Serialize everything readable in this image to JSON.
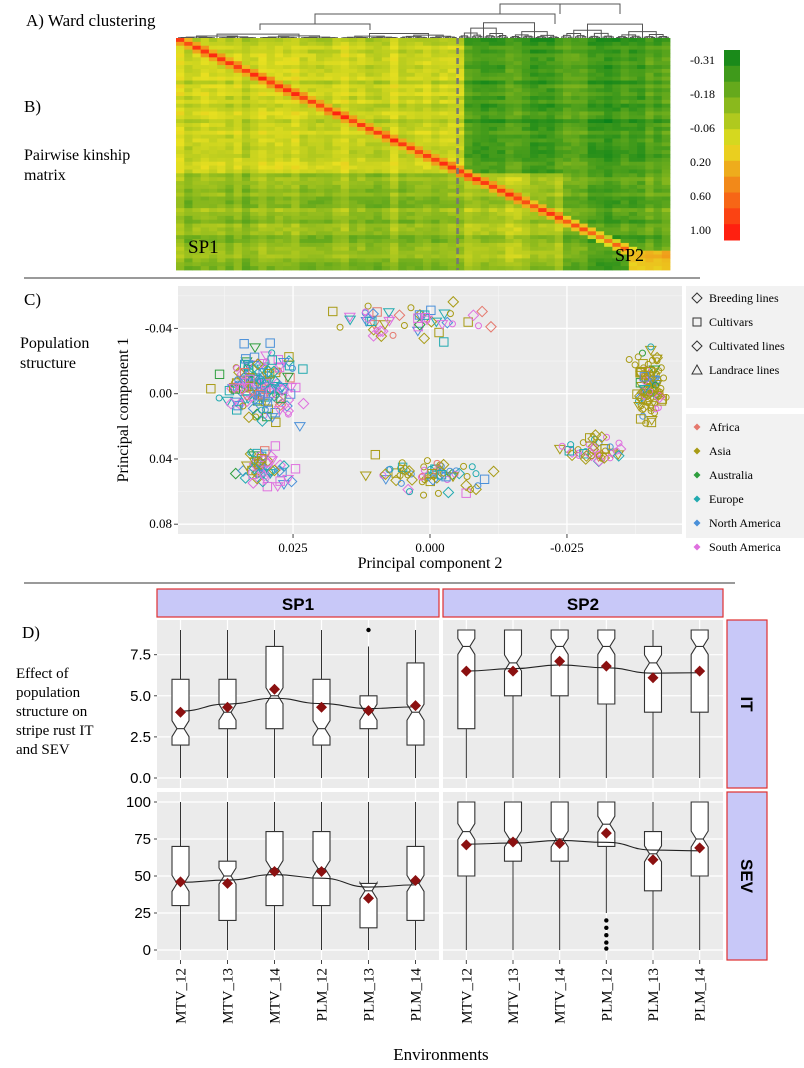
{
  "panel_a": {
    "label": "A) Ward clustering"
  },
  "panel_b": {
    "label": "B)",
    "desc_line1": "Pairwise kinship",
    "desc_line2": "matrix",
    "cluster1": "SP1",
    "cluster2": "SP2",
    "colorbar_ticks": [
      "-0.31",
      "-0.18",
      "-0.06",
      "0.20",
      "0.60",
      "1.00"
    ],
    "colors": {
      "low": "#1a8a1a",
      "mid": "#e8e020",
      "high": "#ff2010"
    }
  },
  "panel_c": {
    "label": "C)",
    "desc_line1": "Population",
    "desc_line2": "structure",
    "xlabel": "Principal component 2",
    "ylabel": "Principal component 1",
    "xticks": [
      "0.025",
      "0.000",
      "-0.025"
    ],
    "yticks": [
      "-0.04",
      "0.00",
      "0.04",
      "0.08"
    ],
    "shape_legend": [
      {
        "label": "Breeding lines",
        "shape": "diamond"
      },
      {
        "label": "Cultivars",
        "shape": "square"
      },
      {
        "label": "Cultivated lines",
        "shape": "diamond"
      },
      {
        "label": "Landrace lines",
        "shape": "triangle"
      }
    ],
    "color_legend": [
      {
        "label": "Africa",
        "color": "#e5786d"
      },
      {
        "label": "Asia",
        "color": "#a89b15"
      },
      {
        "label": "Australia",
        "color": "#2e9e3e"
      },
      {
        "label": "Europe",
        "color": "#22aab0"
      },
      {
        "label": "North America",
        "color": "#4a90d9"
      },
      {
        "label": "South America",
        "color": "#df70df"
      }
    ]
  },
  "panel_d": {
    "label": "D)",
    "desc_lines": [
      "Effect of",
      "population",
      "structure on",
      "stripe rust IT",
      "and SEV"
    ],
    "xlabel": "Environments",
    "strip_cols": [
      "SP1",
      "SP2"
    ],
    "strip_rows": [
      "IT",
      "SEV"
    ]
  },
  "chart_data": [
    {
      "type": "heatmap",
      "title": "Pairwise kinship matrix",
      "legend_values": [
        -0.31,
        -0.18,
        -0.06,
        0.2,
        0.6,
        1.0
      ],
      "clusters": [
        "SP1",
        "SP2"
      ]
    },
    {
      "type": "scatter",
      "title": "Population structure",
      "xlabel": "Principal component 2",
      "ylabel": "Principal component 1",
      "xlim": [
        0.046,
        -0.046
      ],
      "ylim": [
        -0.066,
        0.086
      ],
      "grid": true,
      "legend_position": "right",
      "groups_approx": [
        {
          "region": "cluster left",
          "pc2_center": 0.03,
          "pc1_center": 0.0
        },
        {
          "region": "arc bottom",
          "pc2_center": 0.0,
          "pc1_center": 0.05
        },
        {
          "region": "cluster right",
          "pc2_center": -0.04,
          "pc1_center": 0.0
        }
      ]
    },
    {
      "type": "box",
      "title": "Effect of population structure on stripe rust IT and SEV",
      "xlabel": "Environments",
      "categories": [
        "MTV_12",
        "MTV_13",
        "MTV_14",
        "PLM_12",
        "PLM_13",
        "PLM_14"
      ],
      "facets": [
        {
          "col": "SP1",
          "row": "IT",
          "ylim": [
            0,
            9
          ],
          "yticks": [
            0.0,
            2.5,
            5.0,
            7.5
          ],
          "means": [
            4.0,
            4.3,
            5.4,
            4.3,
            4.1,
            4.4
          ],
          "boxes": [
            {
              "min": 0,
              "q1": 2,
              "median": 3.0,
              "q3": 6,
              "max": 9
            },
            {
              "min": 0,
              "q1": 3,
              "median": 4.0,
              "q3": 6,
              "max": 9
            },
            {
              "min": 0,
              "q1": 3,
              "median": 5.0,
              "q3": 8,
              "max": 9
            },
            {
              "min": 0,
              "q1": 2,
              "median": 3.0,
              "q3": 6,
              "max": 9
            },
            {
              "min": 0,
              "q1": 3,
              "median": 4.0,
              "q3": 5,
              "max": 8
            },
            {
              "min": 0,
              "q1": 2,
              "median": 4.0,
              "q3": 7,
              "max": 9
            }
          ],
          "outliers": [
            [
              4,
              9
            ]
          ]
        },
        {
          "col": "SP2",
          "row": "IT",
          "ylim": [
            0,
            9
          ],
          "yticks": [
            0.0,
            2.5,
            5.0,
            7.5
          ],
          "means": [
            6.5,
            6.5,
            7.1,
            6.8,
            6.1,
            6.5
          ],
          "boxes": [
            {
              "min": 0,
              "q1": 3,
              "median": 8.0,
              "q3": 9,
              "max": 9
            },
            {
              "min": 0,
              "q1": 5,
              "median": 7.0,
              "q3": 9,
              "max": 9
            },
            {
              "min": 0,
              "q1": 5,
              "median": 8.0,
              "q3": 9,
              "max": 9
            },
            {
              "min": 0,
              "q1": 4.5,
              "median": 8.0,
              "q3": 9,
              "max": 9
            },
            {
              "min": 0,
              "q1": 4,
              "median": 7.0,
              "q3": 8,
              "max": 9
            },
            {
              "min": 0,
              "q1": 4,
              "median": 8.0,
              "q3": 9,
              "max": 9
            }
          ],
          "outliers": []
        },
        {
          "col": "SP1",
          "row": "SEV",
          "ylim": [
            0,
            100
          ],
          "yticks": [
            0,
            25,
            50,
            75,
            100
          ],
          "means": [
            46,
            45,
            53,
            53,
            35,
            47
          ],
          "boxes": [
            {
              "min": 0,
              "q1": 30,
              "median": 45,
              "q3": 70,
              "max": 100
            },
            {
              "min": 0,
              "q1": 20,
              "median": 50,
              "q3": 60,
              "max": 100
            },
            {
              "min": 0,
              "q1": 30,
              "median": 55,
              "q3": 80,
              "max": 100
            },
            {
              "min": 0,
              "q1": 30,
              "median": 55,
              "q3": 80,
              "max": 100
            },
            {
              "min": 0,
              "q1": 15,
              "median": 40,
              "q3": 45,
              "max": 100
            },
            {
              "min": 0,
              "q1": 20,
              "median": 45,
              "q3": 70,
              "max": 100
            }
          ],
          "outliers": []
        },
        {
          "col": "SP2",
          "row": "SEV",
          "ylim": [
            0,
            100
          ],
          "yticks": [
            0,
            25,
            50,
            75,
            100
          ],
          "means": [
            71,
            73,
            72,
            79,
            61,
            69
          ],
          "boxes": [
            {
              "min": 0,
              "q1": 50,
              "median": 80,
              "q3": 100,
              "max": 100
            },
            {
              "min": 0,
              "q1": 60,
              "median": 75,
              "q3": 100,
              "max": 100
            },
            {
              "min": 0,
              "q1": 60,
              "median": 75,
              "q3": 100,
              "max": 100
            },
            {
              "min": 25,
              "q1": 70,
              "median": 85,
              "q3": 100,
              "max": 100
            },
            {
              "min": 0,
              "q1": 40,
              "median": 65,
              "q3": 80,
              "max": 100
            },
            {
              "min": 0,
              "q1": 50,
              "median": 75,
              "q3": 100,
              "max": 100
            }
          ],
          "outliers": [
            [
              3,
              20
            ],
            [
              3,
              15
            ],
            [
              3,
              10
            ],
            [
              3,
              5
            ],
            [
              3,
              1
            ]
          ]
        }
      ]
    }
  ]
}
